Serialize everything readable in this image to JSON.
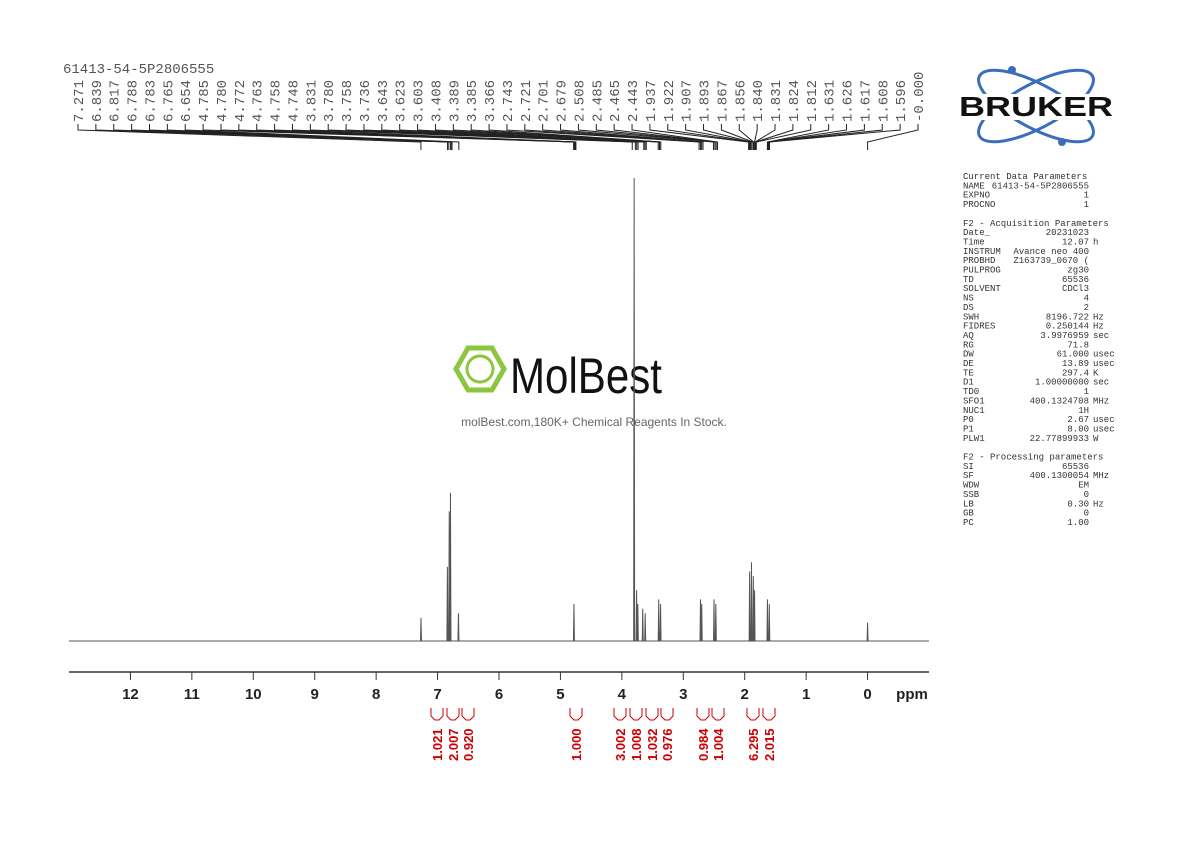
{
  "sample_id": "61413-54-5P2806555",
  "peak_labels": [
    "7.271",
    "6.839",
    "6.817",
    "6.788",
    "6.783",
    "6.765",
    "6.654",
    "4.785",
    "4.780",
    "4.772",
    "4.763",
    "4.758",
    "4.748",
    "3.831",
    "3.780",
    "3.758",
    "3.736",
    "3.643",
    "3.623",
    "3.603",
    "3.408",
    "3.389",
    "3.385",
    "3.366",
    "2.743",
    "2.721",
    "2.701",
    "2.679",
    "2.508",
    "2.485",
    "2.465",
    "2.443",
    "1.937",
    "1.922",
    "1.907",
    "1.893",
    "1.867",
    "1.856",
    "1.840",
    "1.831",
    "1.824",
    "1.812",
    "1.631",
    "1.626",
    "1.617",
    "1.608",
    "1.596",
    "-0.000"
  ],
  "chart_data": {
    "type": "line",
    "x_label": "ppm",
    "color": "#555555",
    "xlim": [
      13,
      -1
    ],
    "ylim": [
      0,
      100
    ],
    "xticks": [
      12,
      11,
      10,
      9,
      8,
      7,
      6,
      5,
      4,
      3,
      2,
      1,
      0
    ],
    "x": [
      13,
      7.278,
      7.27,
      7.262,
      6.848,
      6.84,
      6.832,
      6.818,
      6.81,
      6.802,
      6.798,
      6.79,
      6.782,
      6.668,
      6.66,
      6.652,
      4.788,
      4.78,
      4.772,
      3.808,
      3.8,
      3.792,
      3.768,
      3.76,
      3.752,
      3.748,
      3.74,
      3.732,
      3.668,
      3.66,
      3.652,
      3.628,
      3.62,
      3.612,
      3.408,
      3.4,
      3.392,
      3.378,
      3.37,
      3.362,
      2.728,
      2.72,
      2.712,
      2.708,
      2.7,
      2.692,
      2.508,
      2.5,
      2.492,
      2.478,
      2.47,
      2.462,
      1.928,
      1.92,
      1.912,
      1.898,
      1.89,
      1.882,
      1.868,
      1.86,
      1.852,
      1.848,
      1.84,
      1.832,
      1.638,
      1.63,
      1.622,
      1.608,
      1.6,
      1.592,
      0.008,
      0,
      -0.008,
      -1
    ],
    "values": [
      0,
      0,
      5,
      0,
      0,
      16,
      0,
      0,
      28,
      0,
      0,
      32,
      0,
      0,
      6,
      0,
      0,
      8,
      0,
      0,
      100,
      0,
      0,
      11,
      0,
      0,
      8,
      0,
      0,
      7,
      0,
      0,
      6,
      0,
      0,
      9,
      0,
      0,
      8,
      0,
      0,
      9,
      0,
      0,
      8,
      0,
      0,
      9,
      0,
      0,
      8,
      0,
      0,
      15,
      0,
      0,
      17,
      0,
      0,
      14,
      0,
      0,
      11,
      0,
      0,
      9,
      0,
      0,
      8,
      0,
      0,
      4,
      0,
      0
    ]
  },
  "integrals": [
    "1.021",
    "2.007",
    "0.920",
    "1.000",
    "3.002",
    "1.008",
    "1.032",
    "0.976",
    "0.984",
    "1.004",
    "6.295",
    "2.015"
  ],
  "watermark": {
    "brand": "MolBest",
    "tagline": "molBest.com,180K+ Chemical Reagents In Stock."
  },
  "logo": "BRUKER",
  "parameters": [
    {
      "title": "Current Data Parameters",
      "rows": [
        [
          "NAME",
          "61413-54-5P2806555"
        ],
        [
          "EXPNO",
          "1"
        ],
        [
          "PROCNO",
          "1"
        ]
      ]
    },
    {
      "title": "F2 - Acquisition Parameters",
      "rows": [
        [
          "Date_",
          "20231023"
        ],
        [
          "Time",
          "12.07",
          "h"
        ],
        [
          "INSTRUM",
          "Avance neo 400"
        ],
        [
          "PROBHD",
          "Z163739_0670 ("
        ],
        [
          "PULPROG",
          "zg30"
        ],
        [
          "TD",
          "65536"
        ],
        [
          "SOLVENT",
          "CDCl3"
        ],
        [
          "NS",
          "4"
        ],
        [
          "DS",
          "2"
        ],
        [
          "SWH",
          "8196.722",
          "Hz"
        ],
        [
          "FIDRES",
          "0.250144",
          "Hz"
        ],
        [
          "AQ",
          "3.9976959",
          "sec"
        ],
        [
          "RG",
          "71.8"
        ],
        [
          "DW",
          "61.000",
          "usec"
        ],
        [
          "DE",
          "13.89",
          "usec"
        ],
        [
          "TE",
          "297.4",
          "K"
        ],
        [
          "D1",
          "1.00000000",
          "sec"
        ],
        [
          "TD0",
          "1"
        ],
        [
          "SFO1",
          "400.1324708",
          "MHz"
        ],
        [
          "NUC1",
          "1H"
        ],
        [
          "P0",
          "2.67",
          "usec"
        ],
        [
          "P1",
          "8.00",
          "usec"
        ],
        [
          "PLW1",
          "22.77899933",
          "W"
        ]
      ]
    },
    {
      "title": "F2 - Processing parameters",
      "rows": [
        [
          "SI",
          "65536"
        ],
        [
          "SF",
          "400.1300054",
          "MHz"
        ],
        [
          "WDW",
          "EM"
        ],
        [
          "SSB",
          "0"
        ],
        [
          "LB",
          "0.30",
          "Hz"
        ],
        [
          "GB",
          "0"
        ],
        [
          "PC",
          "1.00"
        ]
      ]
    }
  ]
}
